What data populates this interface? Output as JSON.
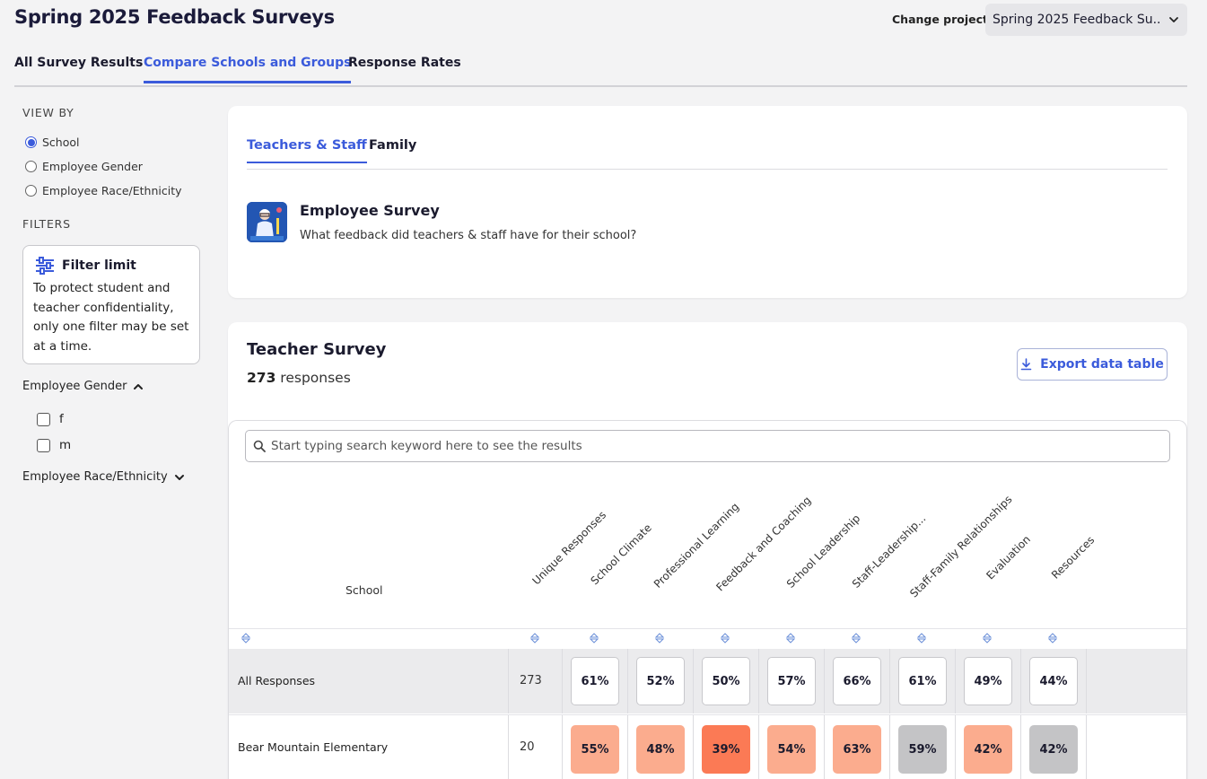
{
  "header": {
    "title": "Spring 2025 Feedback Surveys",
    "project_label": "Change project:",
    "project_value": "Spring 2025 Feedback Su..."
  },
  "main_tabs": [
    {
      "label": "All Survey Results",
      "active": false
    },
    {
      "label": "Compare Schools and Groups",
      "active": true
    },
    {
      "label": "Response Rates",
      "active": false
    }
  ],
  "sidebar": {
    "view_by_label": "VIEW BY",
    "view_by_options": [
      {
        "label": "School",
        "selected": true
      },
      {
        "label": "Employee Gender",
        "selected": false
      },
      {
        "label": "Employee Race/Ethnicity",
        "selected": false
      }
    ],
    "filters_label": "FILTERS",
    "filter_limit": {
      "title": "Filter limit",
      "text": "To protect student and teacher confidentiality, only one filter may be set at a time."
    },
    "groups": [
      {
        "label": "Employee Gender",
        "expanded": true,
        "options": [
          "f",
          "m"
        ]
      },
      {
        "label": "Employee Race/Ethnicity",
        "expanded": false,
        "options": []
      }
    ]
  },
  "survey_card": {
    "tabs": [
      {
        "label": "Teachers & Staff",
        "active": true
      },
      {
        "label": "Family",
        "active": false
      }
    ],
    "title": "Employee Survey",
    "description": "What feedback did teachers & staff have for their school?"
  },
  "results": {
    "title": "Teacher Survey",
    "count": "273",
    "count_suffix": "responses",
    "export_label": "Export data table",
    "search_placeholder": "Start typing search keyword here to see the results",
    "school_col": "School",
    "columns": [
      "Unique Responses",
      "School Climate",
      "Professional Learning",
      "Feedback and Coaching",
      "School Leadership",
      "Staff-Leadership...",
      "Staff-Family Relationships",
      "Evaluation",
      "Resources"
    ],
    "rows": [
      {
        "name": "All Responses",
        "responses": "273",
        "values": [
          "61%",
          "52%",
          "50%",
          "57%",
          "66%",
          "61%",
          "49%",
          "44%"
        ],
        "colors": [
          "#ffffff",
          "#ffffff",
          "#ffffff",
          "#ffffff",
          "#ffffff",
          "#ffffff",
          "#ffffff",
          "#ffffff"
        ]
      },
      {
        "name": "Bear Mountain Elementary",
        "responses": "20",
        "values": [
          "55%",
          "48%",
          "39%",
          "54%",
          "63%",
          "59%",
          "42%",
          "42%"
        ],
        "colors": [
          "#fbac8e",
          "#fbac8e",
          "#fb7a55",
          "#fbac8e",
          "#fbac8e",
          "#c4c4c6",
          "#fbac8e",
          "#c4c4c6"
        ]
      }
    ]
  }
}
